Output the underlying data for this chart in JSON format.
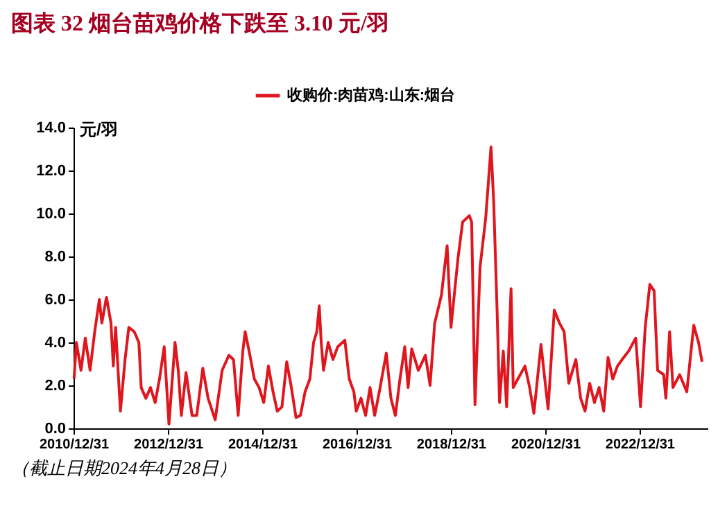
{
  "chart_data": {
    "type": "line",
    "title": "图表 32   烟台苗鸡价格下跌至 3.10 元/羽",
    "ylabel": "元/羽",
    "annotations": [
      "（截止日期2024年4月28日）"
    ],
    "xlim": [
      "2010-12-31",
      "2024-06-10"
    ],
    "xticks": [
      {
        "value": "2010-12-31",
        "label": "2010/12/31"
      },
      {
        "value": "2012-12-31",
        "label": "2012/12/31"
      },
      {
        "value": "2014-12-31",
        "label": "2014/12/31"
      },
      {
        "value": "2016-12-31",
        "label": "2016/12/31"
      },
      {
        "value": "2018-12-31",
        "label": "2018/12/31"
      },
      {
        "value": "2020-12-31",
        "label": "2020/12/31"
      },
      {
        "value": "2022-12-31",
        "label": "2022/12/31"
      }
    ],
    "ylim": [
      0,
      14
    ],
    "yticks": [
      {
        "value": 0,
        "label": "0.0"
      },
      {
        "value": 2,
        "label": "2.0"
      },
      {
        "value": 4,
        "label": "4.0"
      },
      {
        "value": 6,
        "label": "6.0"
      },
      {
        "value": 8,
        "label": "8.0"
      },
      {
        "value": 10,
        "label": "10.0"
      },
      {
        "value": 12,
        "label": "12.0"
      },
      {
        "value": 14,
        "label": "14.0"
      }
    ],
    "grid": false,
    "legend": "top",
    "marker": "none",
    "line_style": "solid",
    "series": [
      {
        "name": "收购价:肉苗鸡:山东:烟台",
        "color": "#e0161e",
        "x": [
          "2011-01-04",
          "2011-01-22",
          "2011-02-27",
          "2011-04-01",
          "2011-05-08",
          "2011-06-13",
          "2011-07-19",
          "2011-08-07",
          "2011-09-12",
          "2011-10-17",
          "2011-11-04",
          "2011-11-22",
          "2011-12-29",
          "2012-02-03",
          "2012-03-03",
          "2012-04-14",
          "2012-05-20",
          "2012-06-07",
          "2012-07-13",
          "2012-08-18",
          "2012-09-23",
          "2012-10-27",
          "2012-12-02",
          "2013-01-08",
          "2013-02-24",
          "2013-03-21",
          "2013-04-14",
          "2013-05-20",
          "2013-07-06",
          "2013-08-11",
          "2013-09-27",
          "2013-11-07",
          "2014-01-01",
          "2014-02-24",
          "2014-04-17",
          "2014-05-23",
          "2014-06-28",
          "2014-08-03",
          "2014-08-21",
          "2014-09-27",
          "2014-10-31",
          "2014-12-07",
          "2015-01-12",
          "2015-02-17",
          "2015-03-25",
          "2015-04-27",
          "2015-06-02",
          "2015-07-09",
          "2015-08-14",
          "2015-09-19",
          "2015-10-23",
          "2015-11-28",
          "2016-01-04",
          "2016-02-02",
          "2016-02-27",
          "2016-03-17",
          "2016-04-01",
          "2016-04-19",
          "2016-05-25",
          "2016-07-01",
          "2016-08-07",
          "2016-10-01",
          "2016-11-04",
          "2016-12-10",
          "2016-12-28",
          "2017-02-03",
          "2017-03-11",
          "2017-04-14",
          "2017-05-20",
          "2017-06-25",
          "2017-08-18",
          "2017-09-23",
          "2017-10-27",
          "2017-12-02",
          "2018-01-08",
          "2018-02-03",
          "2018-03-03",
          "2018-04-23",
          "2018-06-17",
          "2018-07-23",
          "2018-08-28",
          "2018-10-19",
          "2018-12-02",
          "2019-01-01",
          "2019-02-24",
          "2019-04-01",
          "2019-05-23",
          "2019-06-10",
          "2019-07-06",
          "2019-08-14",
          "2019-09-27",
          "2019-11-07",
          "2019-11-28",
          "2019-12-24",
          "2020-01-12",
          "2020-02-10",
          "2020-03-07",
          "2020-04-10",
          "2020-04-27",
          "2020-06-02",
          "2020-07-27",
          "2020-09-01",
          "2020-10-04",
          "2020-11-28",
          "2021-01-22",
          "2021-03-11",
          "2021-04-20",
          "2021-05-26",
          "2021-07-01",
          "2021-08-25",
          "2021-10-01",
          "2021-11-04",
          "2021-12-10",
          "2022-01-16",
          "2022-02-21",
          "2022-03-29",
          "2022-05-01",
          "2022-06-07",
          "2022-07-13",
          "2022-08-18",
          "2022-10-08",
          "2022-12-02",
          "2023-01-08",
          "2023-02-13",
          "2023-03-21",
          "2023-04-23",
          "2023-05-20",
          "2023-07-06",
          "2023-07-23",
          "2023-08-21",
          "2023-09-16",
          "2023-11-07",
          "2024-01-01",
          "2024-02-24",
          "2024-04-01",
          "2024-04-28"
        ],
        "values": [
          2.3,
          4.0,
          2.7,
          4.2,
          2.7,
          4.5,
          6.0,
          4.9,
          6.1,
          4.9,
          2.9,
          4.7,
          0.8,
          3.2,
          4.7,
          4.5,
          4.0,
          1.9,
          1.4,
          1.9,
          1.2,
          2.3,
          3.8,
          0.2,
          4.0,
          2.7,
          0.6,
          2.6,
          0.6,
          0.6,
          2.8,
          1.4,
          0.4,
          2.7,
          3.4,
          3.2,
          0.6,
          3.6,
          4.5,
          3.4,
          2.3,
          1.9,
          1.2,
          2.9,
          1.7,
          0.8,
          1.0,
          3.1,
          1.9,
          0.5,
          0.6,
          1.7,
          2.3,
          4.0,
          4.5,
          5.7,
          4.0,
          2.7,
          4.0,
          3.2,
          3.8,
          4.1,
          2.3,
          1.7,
          0.8,
          1.4,
          0.6,
          1.9,
          0.6,
          1.7,
          3.5,
          1.4,
          0.6,
          2.3,
          3.8,
          1.9,
          3.7,
          2.7,
          3.4,
          2.0,
          4.9,
          6.2,
          8.5,
          4.7,
          7.9,
          9.6,
          9.9,
          9.6,
          1.1,
          7.5,
          9.8,
          13.1,
          10.5,
          5.5,
          1.2,
          3.6,
          1.0,
          6.5,
          1.9,
          2.3,
          2.9,
          1.9,
          0.7,
          3.9,
          0.9,
          5.5,
          4.9,
          4.5,
          2.1,
          3.2,
          1.4,
          0.8,
          2.1,
          1.2,
          1.9,
          0.8,
          3.3,
          2.3,
          2.9,
          3.2,
          3.6,
          4.2,
          1.0,
          4.7,
          6.7,
          6.4,
          2.7,
          2.5,
          1.4,
          4.5,
          1.9,
          2.5,
          1.7,
          4.8,
          4.0,
          3.1
        ]
      }
    ]
  }
}
